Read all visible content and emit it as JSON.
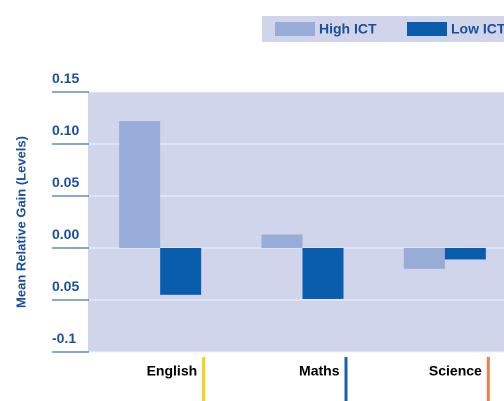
{
  "chart_data": {
    "type": "bar",
    "y_label": "Mean Relative Gain (Levels)",
    "categories": [
      "English",
      "Maths",
      "Science"
    ],
    "category_colors": [
      "#f5cf1f",
      "#1a5fb4",
      "#e8804a"
    ],
    "series": [
      {
        "name": "High ICT",
        "color": "#98acd8",
        "values": [
          0.122,
          0.013,
          -0.02
        ]
      },
      {
        "name": "Low ICT",
        "color": "#0a5cad",
        "values": [
          -0.045,
          -0.049,
          -0.011
        ]
      }
    ],
    "ylim": [
      -0.1,
      0.15
    ],
    "yticks": [
      -0.1,
      {
        "value": -0.1,
        "label": "0.10"
      },
      {
        "value": -0.05,
        "label": "0.05"
      },
      {
        "value": 0,
        "label": "0.00"
      },
      0.05,
      {
        "value": 0.1,
        "label": "0.10"
      },
      0.15
    ],
    "grid": true,
    "legend": "top-right"
  }
}
